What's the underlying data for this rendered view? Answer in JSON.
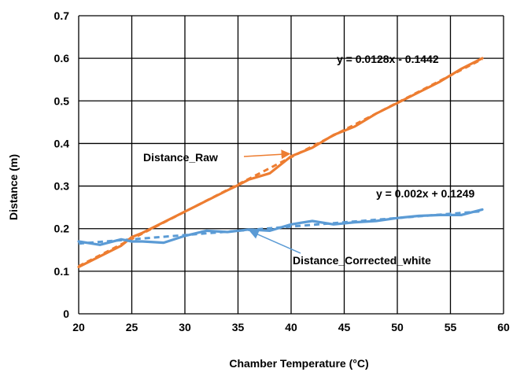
{
  "chart_data": {
    "type": "line",
    "title": "",
    "xlabel": "Chamber Temperature (°C)",
    "ylabel": "Distance (m)",
    "xlim": [
      20,
      60
    ],
    "ylim": [
      0,
      0.7
    ],
    "xticks": [
      20,
      25,
      30,
      35,
      40,
      45,
      50,
      55,
      60
    ],
    "yticks": [
      0,
      0.1,
      0.2,
      0.3,
      0.4,
      0.5,
      0.6,
      0.7
    ],
    "xtick_labels": [
      "20",
      "25",
      "30",
      "35",
      "40",
      "45",
      "50",
      "55",
      "60"
    ],
    "ytick_labels": [
      "0",
      "0.1",
      "0.2",
      "0.3",
      "0.4",
      "0.5",
      "0.6",
      "0.7"
    ],
    "grid": true,
    "series": [
      {
        "name": "Distance_Raw",
        "color": "#ED7D31",
        "x": [
          20,
          22,
          24,
          25,
          26,
          28,
          30,
          32,
          34,
          35,
          36,
          38,
          40,
          42,
          44,
          46,
          48,
          50,
          52,
          54,
          56,
          58
        ],
        "y": [
          0.11,
          0.135,
          0.16,
          0.18,
          0.19,
          0.215,
          0.24,
          0.265,
          0.29,
          0.302,
          0.315,
          0.33,
          0.37,
          0.39,
          0.42,
          0.44,
          0.47,
          0.495,
          0.52,
          0.545,
          0.575,
          0.6
        ]
      },
      {
        "name": "Distance_Corrected_white",
        "color": "#5B9BD5",
        "x": [
          20,
          22,
          24,
          25,
          26,
          28,
          30,
          32,
          34,
          36,
          38,
          40,
          42,
          44,
          46,
          48,
          50,
          52,
          54,
          56,
          58
        ],
        "y": [
          0.17,
          0.162,
          0.175,
          0.17,
          0.17,
          0.167,
          0.183,
          0.195,
          0.192,
          0.198,
          0.195,
          0.21,
          0.218,
          0.21,
          0.215,
          0.218,
          0.225,
          0.23,
          0.232,
          0.232,
          0.245
        ]
      }
    ],
    "trendlines": [
      {
        "series": "Distance_Raw",
        "slope": 0.0128,
        "intercept": -0.1442,
        "equation": "y = 0.0128x - 0.1442",
        "color": "#ED7D31"
      },
      {
        "series": "Distance_Corrected_white",
        "slope": 0.002,
        "intercept": 0.1249,
        "equation": "y = 0.002x + 0.1249",
        "color": "#5B9BD5"
      }
    ],
    "annotations": [
      {
        "text": "Distance_Raw",
        "points_to": [
          40,
          0.372
        ],
        "color": "#ED7D31"
      },
      {
        "text": "Distance_Corrected_white",
        "points_to": [
          36,
          0.198
        ],
        "color": "#5B9BD5"
      }
    ]
  }
}
